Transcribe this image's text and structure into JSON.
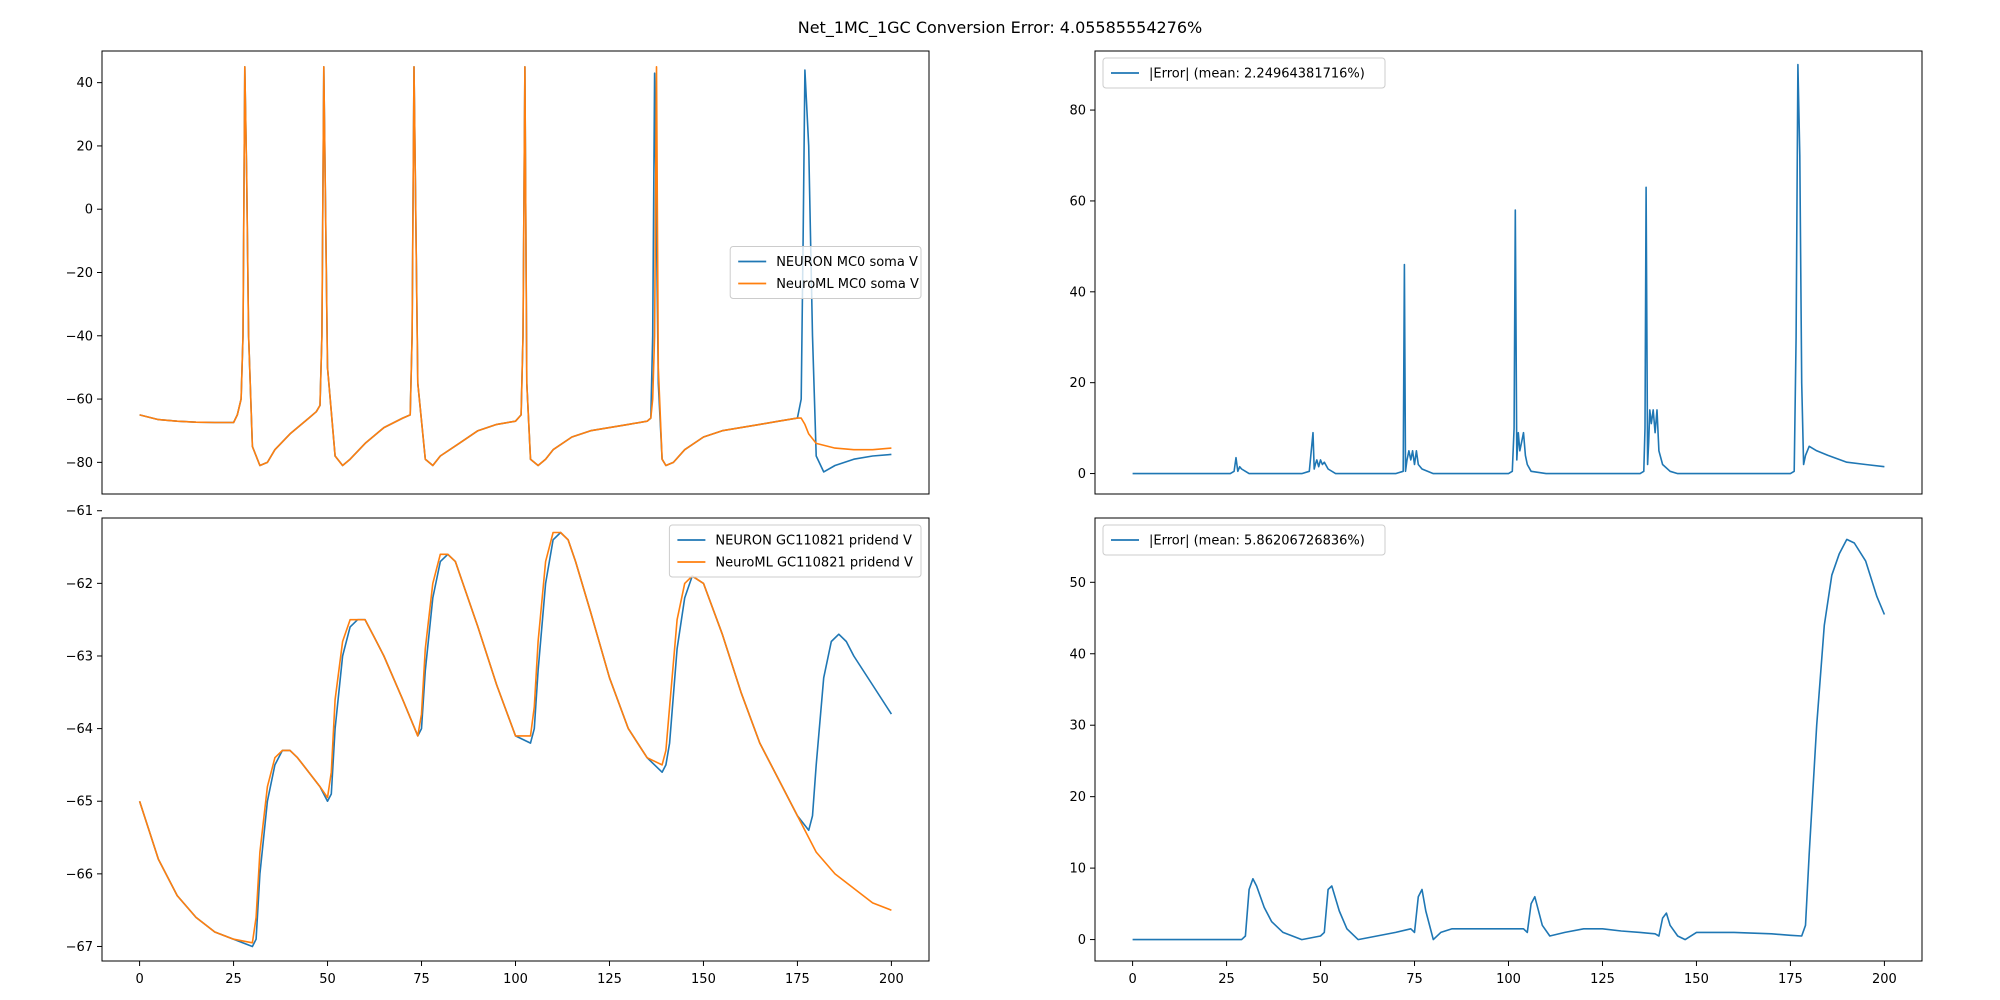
{
  "figure": {
    "title": "Net_1MC_1GC Conversion Error: 4.05585554276%"
  },
  "colors": {
    "blue": "#1f77b4",
    "orange": "#ff7f0e",
    "axis": "#000000"
  },
  "chart_data": [
    {
      "type": "line",
      "xlim": [
        -10,
        210
      ],
      "ylim": [
        -90,
        50
      ],
      "xticks": [],
      "yticks": [
        40,
        20,
        0,
        -20,
        -40,
        -60,
        -80
      ],
      "legend_position": "center-right",
      "series": [
        {
          "name": "NEURON MC0 soma V",
          "color": "blue",
          "x": [
            0,
            5,
            10,
            15,
            20,
            25,
            26,
            27,
            27.5,
            28,
            28.5,
            29,
            30,
            32,
            34,
            36,
            40,
            45,
            47,
            48,
            48.5,
            49,
            50,
            52,
            54,
            56,
            60,
            65,
            70,
            72,
            72.5,
            73,
            74,
            76,
            78,
            80,
            85,
            90,
            95,
            100,
            101.5,
            102,
            102.5,
            103,
            104,
            106,
            108,
            110,
            115,
            120,
            125,
            130,
            135,
            136,
            136.5,
            137,
            138,
            139,
            140,
            142,
            145,
            150,
            155,
            160,
            165,
            170,
            175,
            176,
            176.5,
            177,
            178,
            179,
            180,
            182,
            185,
            190,
            195,
            200
          ],
          "y": [
            -65,
            -66.5,
            -67,
            -67.3,
            -67.4,
            -67.4,
            -65,
            -60,
            -40,
            45,
            10,
            -40,
            -75,
            -81,
            -80,
            -76,
            -71,
            -66,
            -64,
            -62,
            -40,
            45,
            -50,
            -78,
            -81,
            -79,
            -74,
            -69,
            -66,
            -65,
            -40,
            45,
            -55,
            -79,
            -81,
            -78,
            -74,
            -70,
            -68,
            -67,
            -65,
            -40,
            45,
            -55,
            -79,
            -81,
            -79,
            -76,
            -72,
            -70,
            -69,
            -68,
            -67,
            -66,
            -40,
            43,
            -55,
            -79,
            -81,
            -80,
            -76,
            -72,
            -70,
            -69,
            -68,
            -67,
            -66,
            -60,
            -10,
            44,
            20,
            -40,
            -78,
            -83,
            -81,
            -79,
            -78,
            -77.5
          ]
        },
        {
          "name": "NeuroML MC0 soma V",
          "color": "orange",
          "x": [
            0,
            5,
            10,
            15,
            20,
            25,
            26,
            27,
            27.5,
            28,
            28.5,
            29,
            30,
            32,
            34,
            36,
            40,
            45,
            47,
            48,
            48.5,
            49,
            50,
            52,
            54,
            56,
            60,
            65,
            70,
            72,
            72.5,
            73,
            74,
            76,
            78,
            80,
            85,
            90,
            95,
            100,
            101.5,
            102,
            102.5,
            103,
            104,
            106,
            108,
            110,
            115,
            120,
            125,
            130,
            135,
            136,
            136.5,
            137,
            137.5,
            138,
            139,
            140,
            142,
            145,
            150,
            155,
            160,
            165,
            170,
            175,
            176,
            177,
            178,
            180,
            185,
            190,
            195,
            200
          ],
          "y": [
            -65,
            -66.5,
            -67,
            -67.3,
            -67.4,
            -67.4,
            -65,
            -60,
            -40,
            45,
            10,
            -40,
            -75,
            -81,
            -80,
            -76,
            -71,
            -66,
            -64,
            -62,
            -40,
            45,
            -50,
            -78,
            -81,
            -79,
            -74,
            -69,
            -66,
            -65,
            -40,
            45,
            -55,
            -79,
            -81,
            -78,
            -74,
            -70,
            -68,
            -67,
            -65,
            -40,
            45,
            -55,
            -79,
            -81,
            -79,
            -76,
            -72,
            -70,
            -69,
            -68,
            -67,
            -66,
            -60,
            -40,
            45,
            -50,
            -79,
            -81,
            -80,
            -76,
            -72,
            -70,
            -69,
            -68,
            -67,
            -66,
            -66,
            -68,
            -71,
            -74,
            -75.5,
            -76,
            -76,
            -75.5
          ]
        }
      ]
    },
    {
      "type": "line",
      "xlim": [
        -10,
        210
      ],
      "ylim": [
        -4.5,
        93
      ],
      "xticks": [],
      "yticks": [
        80,
        60,
        40,
        20,
        0
      ],
      "legend_position": "upper-left",
      "series": [
        {
          "name": "|Error| (mean: 2.24964381716%)",
          "color": "blue",
          "x": [
            0,
            10,
            20,
            26,
            27,
            27.5,
            28,
            28.5,
            29,
            30,
            31,
            32,
            35,
            40,
            45,
            47,
            48,
            48.3,
            48.6,
            49,
            49.5,
            50,
            50.5,
            51,
            52,
            54,
            60,
            70,
            72,
            72.3,
            72.6,
            73,
            73.5,
            74,
            74.5,
            75,
            75.5,
            76,
            77,
            80,
            90,
            100,
            101,
            101.5,
            101.8,
            102.2,
            102.6,
            103,
            103.5,
            104,
            104.5,
            105,
            106,
            110,
            120,
            130,
            135,
            136,
            136.3,
            136.6,
            137,
            137.3,
            137.6,
            138,
            138.5,
            139,
            139.5,
            140,
            141,
            143,
            145,
            150,
            160,
            170,
            175,
            176,
            176.5,
            177,
            177.5,
            178,
            178.5,
            179,
            180,
            182,
            185,
            190,
            195,
            200
          ],
          "y": [
            0,
            0,
            0,
            0,
            0.5,
            3.5,
            0.5,
            1.5,
            1,
            0.5,
            0,
            0,
            0,
            0,
            0,
            0.5,
            9,
            1,
            2,
            3,
            1.5,
            3,
            2,
            2.5,
            1,
            0,
            0,
            0,
            0.5,
            46,
            0.5,
            3,
            5,
            3,
            5,
            2,
            5,
            2,
            1,
            0,
            0,
            0,
            0.5,
            10,
            58,
            3,
            9,
            5,
            7,
            9,
            4,
            2,
            0.5,
            0,
            0,
            0,
            0,
            0.5,
            10,
            63,
            2,
            7,
            14,
            11,
            14,
            9,
            14,
            5,
            2,
            0.5,
            0,
            0,
            0,
            0,
            0,
            0.5,
            30,
            90,
            70,
            20,
            2,
            4,
            6,
            5,
            4,
            2.5,
            2,
            1.5
          ]
        }
      ]
    },
    {
      "type": "line",
      "xlim": [
        -10,
        210
      ],
      "ylim": [
        -67.2,
        -61.1
      ],
      "xticks": [
        0,
        25,
        50,
        75,
        100,
        125,
        150,
        175,
        200
      ],
      "yticks": [
        -61,
        -62,
        -63,
        -64,
        -65,
        -66,
        -67
      ],
      "legend_position": "upper-right",
      "series": [
        {
          "name": "NEURON GC110821 pridend V",
          "color": "blue",
          "x": [
            0,
            5,
            10,
            15,
            20,
            25,
            30,
            31,
            32,
            34,
            36,
            38,
            40,
            42,
            45,
            48,
            50,
            51,
            52,
            54,
            56,
            58,
            60,
            62,
            65,
            70,
            74,
            75,
            76,
            78,
            80,
            82,
            84,
            86,
            90,
            95,
            100,
            104,
            105,
            106,
            108,
            110,
            112,
            114,
            116,
            120,
            125,
            130,
            135,
            139,
            140,
            141,
            143,
            145,
            147,
            150,
            155,
            160,
            165,
            170,
            175,
            178,
            179,
            180,
            182,
            184,
            186,
            188,
            190,
            195,
            200
          ],
          "y": [
            -65,
            -65.8,
            -66.3,
            -66.6,
            -66.8,
            -66.9,
            -67,
            -66.9,
            -66,
            -65,
            -64.5,
            -64.3,
            -64.3,
            -64.4,
            -64.6,
            -64.8,
            -65,
            -64.9,
            -64,
            -63,
            -62.6,
            -62.5,
            -62.5,
            -62.7,
            -63,
            -63.6,
            -64.1,
            -64,
            -63.2,
            -62.2,
            -61.7,
            -61.6,
            -61.7,
            -62,
            -62.6,
            -63.4,
            -64.1,
            -64.2,
            -64,
            -63.2,
            -62,
            -61.4,
            -61.3,
            -61.4,
            -61.7,
            -62.4,
            -63.3,
            -64,
            -64.4,
            -64.6,
            -64.5,
            -64.2,
            -62.9,
            -62.2,
            -61.9,
            -62,
            -62.7,
            -63.5,
            -64.2,
            -64.7,
            -65.2,
            -65.4,
            -65.2,
            -64.5,
            -63.3,
            -62.8,
            -62.7,
            -62.8,
            -63,
            -63.4,
            -63.8
          ]
        },
        {
          "name": "NeuroML GC110821 pridend V",
          "color": "orange",
          "x": [
            0,
            5,
            10,
            15,
            20,
            25,
            30,
            31,
            32,
            34,
            36,
            38,
            40,
            42,
            45,
            48,
            50,
            51,
            52,
            54,
            56,
            58,
            60,
            62,
            65,
            70,
            74,
            75,
            76,
            78,
            80,
            82,
            84,
            86,
            90,
            95,
            100,
            104,
            105,
            106,
            108,
            110,
            112,
            114,
            116,
            120,
            125,
            130,
            135,
            139,
            140,
            141,
            143,
            145,
            147,
            150,
            155,
            160,
            165,
            170,
            175,
            180,
            185,
            190,
            195,
            200
          ],
          "y": [
            -65,
            -65.8,
            -66.3,
            -66.6,
            -66.8,
            -66.9,
            -66.95,
            -66.6,
            -65.7,
            -64.8,
            -64.4,
            -64.3,
            -64.3,
            -64.4,
            -64.6,
            -64.8,
            -64.95,
            -64.6,
            -63.6,
            -62.8,
            -62.5,
            -62.5,
            -62.5,
            -62.7,
            -63,
            -63.6,
            -64.1,
            -63.8,
            -62.9,
            -62,
            -61.6,
            -61.6,
            -61.7,
            -62,
            -62.6,
            -63.4,
            -64.1,
            -64.1,
            -63.7,
            -62.8,
            -61.7,
            -61.3,
            -61.3,
            -61.4,
            -61.7,
            -62.4,
            -63.3,
            -64,
            -64.4,
            -64.5,
            -64.3,
            -63.7,
            -62.5,
            -62,
            -61.9,
            -62,
            -62.7,
            -63.5,
            -64.2,
            -64.7,
            -65.2,
            -65.7,
            -66,
            -66.2,
            -66.4,
            -66.5
          ]
        }
      ]
    },
    {
      "type": "line",
      "xlim": [
        -10,
        210
      ],
      "ylim": [
        -3,
        59
      ],
      "xticks": [
        0,
        25,
        50,
        75,
        100,
        125,
        150,
        175,
        200
      ],
      "yticks": [
        50,
        40,
        30,
        20,
        10,
        0
      ],
      "legend_position": "upper-left",
      "series": [
        {
          "name": "|Error| (mean: 5.86206726836%)",
          "color": "blue",
          "x": [
            0,
            10,
            20,
            25,
            29,
            30,
            31,
            32,
            33,
            35,
            37,
            40,
            45,
            50,
            51,
            52,
            53,
            55,
            57,
            60,
            65,
            70,
            74,
            75,
            76,
            77,
            78,
            80,
            82,
            85,
            90,
            95,
            100,
            104,
            105,
            106,
            107,
            109,
            111,
            115,
            120,
            125,
            130,
            135,
            139,
            140,
            141,
            142,
            143,
            145,
            147,
            150,
            160,
            170,
            175,
            178,
            179,
            180,
            182,
            184,
            186,
            188,
            190,
            192,
            195,
            198,
            200
          ],
          "y": [
            0,
            0,
            0,
            0,
            0,
            0.5,
            7,
            8.5,
            7.5,
            4.5,
            2.5,
            1,
            0,
            0.5,
            1,
            7,
            7.5,
            4,
            1.5,
            0,
            0.5,
            1,
            1.5,
            1,
            6,
            7,
            4,
            0,
            1,
            1.5,
            1.5,
            1.5,
            1.5,
            1.5,
            1,
            5,
            6,
            2,
            0.5,
            1,
            1.5,
            1.5,
            1.2,
            1,
            0.8,
            0.5,
            3,
            3.7,
            2,
            0.5,
            0,
            1,
            1,
            0.8,
            0.6,
            0.5,
            2,
            12,
            30,
            44,
            51,
            54,
            56,
            55.5,
            53,
            48,
            45.5
          ]
        }
      ]
    }
  ]
}
